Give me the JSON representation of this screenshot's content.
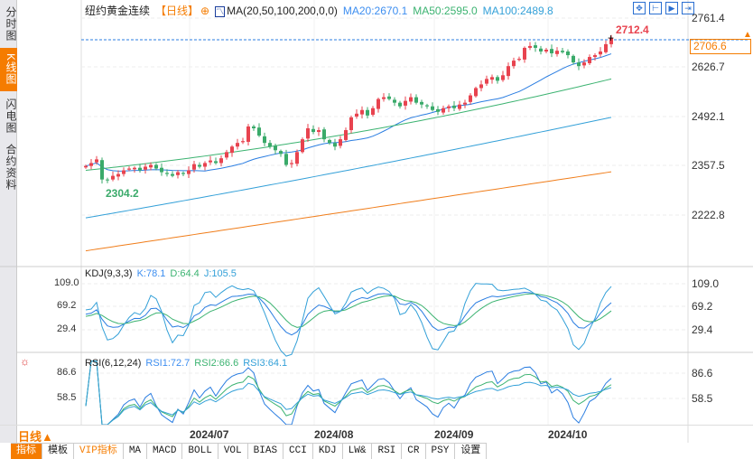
{
  "sidebar": {
    "tabs": [
      {
        "label": "分时图"
      },
      {
        "label": "K线图"
      },
      {
        "label": "闪电图"
      },
      {
        "label": "合约资料"
      }
    ]
  },
  "header": {
    "title": "纽约黄金连续",
    "period_tag": "【日线】",
    "ma_label": "MA(20,50,100,200,0,0)",
    "ma20": "MA20:2670.1",
    "ma50": "MA50:2595.0",
    "ma100": "MA100:2489.8"
  },
  "toolbar": {
    "icons": [
      "crosshair-icon",
      "zoom-range-icon",
      "play-icon",
      "exit-icon"
    ]
  },
  "price_axis": [
    "2761.4",
    "2626.7",
    "2492.1",
    "2357.5",
    "2222.8"
  ],
  "current_price": "2706.6",
  "high_label": "2712.4",
  "low_label": "2304.2",
  "kdj": {
    "label": "KDJ(9,3,3)",
    "k": "K:78.1",
    "d": "D:64.4",
    "j": "J:105.5",
    "axis": [
      "109.0",
      "69.2",
      "29.4"
    ]
  },
  "rsi": {
    "label": "RSI(6,12,24)",
    "rsi1": "RSI1:72.7",
    "rsi2": "RSI2:66.6",
    "rsi3": "RSI3:64.1",
    "axis": [
      "86.6",
      "58.5"
    ]
  },
  "time_axis": [
    "2024/07",
    "2024/08",
    "2024/09",
    "2024/10"
  ],
  "period": "日线▲",
  "tabs": [
    "指标",
    "模板",
    "VIP指标",
    "MA",
    "MACD",
    "BOLL",
    "VOL",
    "BIAS",
    "CCI",
    "KDJ",
    "LW&",
    "RSI",
    "CR",
    "PSY",
    "设置"
  ],
  "colors": {
    "up": "#e8434f",
    "down": "#3aaa6a",
    "ma20": "#2a7de1",
    "ma50": "#3cb371",
    "ma100": "#33a0d8",
    "ma200": "#f07d1a",
    "accent": "#f57c00"
  },
  "chart_data": {
    "type": "candlestick",
    "ylim": [
      2130,
      2770
    ],
    "closes": [
      2357,
      2365,
      2375,
      2320,
      2318,
      2330,
      2335,
      2345,
      2350,
      2352,
      2345,
      2355,
      2360,
      2350,
      2340,
      2335,
      2330,
      2340,
      2335,
      2345,
      2362,
      2355,
      2365,
      2372,
      2365,
      2378,
      2395,
      2410,
      2420,
      2425,
      2465,
      2460,
      2440,
      2420,
      2410,
      2400,
      2390,
      2360,
      2365,
      2395,
      2430,
      2460,
      2450,
      2455,
      2430,
      2420,
      2410,
      2430,
      2455,
      2490,
      2500,
      2510,
      2495,
      2515,
      2540,
      2545,
      2540,
      2530,
      2520,
      2535,
      2545,
      2530,
      2525,
      2520,
      2510,
      2505,
      2515,
      2520,
      2515,
      2525,
      2530,
      2550,
      2570,
      2580,
      2595,
      2600,
      2590,
      2605,
      2630,
      2645,
      2650,
      2680,
      2685,
      2680,
      2670,
      2675,
      2665,
      2672,
      2668,
      2660,
      2640,
      2630,
      2640,
      2655,
      2660,
      2670,
      2690,
      2707
    ],
    "ma50_range": [
      2345,
      2595
    ],
    "ma100_range": [
      2215,
      2490
    ],
    "ma200_range": [
      2125,
      2341
    ]
  }
}
